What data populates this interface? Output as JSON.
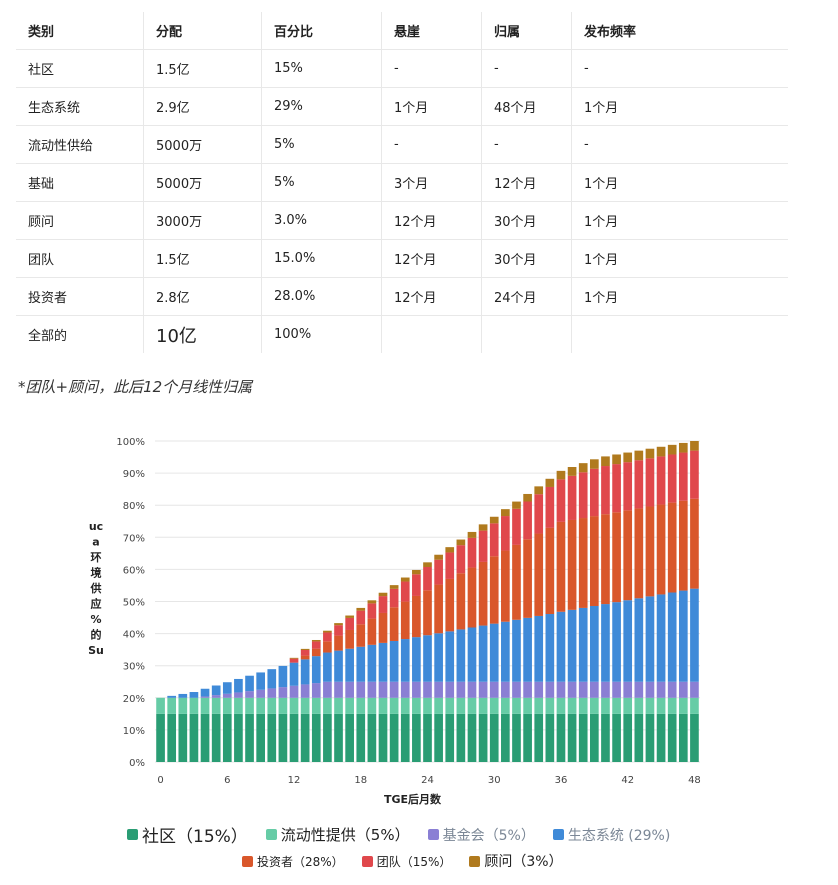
{
  "table": {
    "headers": [
      "类别",
      "分配",
      "百分比",
      "悬崖",
      "归属",
      "发布频率"
    ],
    "rows": [
      [
        "社区",
        "1.5亿",
        "15%",
        "-",
        "-",
        "-"
      ],
      [
        "生态系统",
        "2.9亿",
        "29%",
        "1个月",
        "48个月",
        "1个月"
      ],
      [
        "流动性供给",
        "5000万",
        "5%",
        "-",
        "-",
        "-"
      ],
      [
        "基础",
        "5000万",
        "5%",
        "3个月",
        "12个月",
        "1个月"
      ],
      [
        "顾问",
        "3000万",
        "3.0%",
        "12个月",
        "30个月",
        "1个月"
      ],
      [
        "团队",
        "1.5亿",
        "15.0%",
        "12个月",
        "30个月",
        "1个月"
      ],
      [
        "投资者",
        "2.8亿",
        "28.0%",
        "12个月",
        "24个月",
        "1个月"
      ],
      [
        "全部的",
        "10亿",
        "100%",
        "",
        "",
        ""
      ]
    ]
  },
  "note": "*团队+顾问，此后12个月线性归属",
  "chart_data": {
    "type": "bar",
    "stacked": true,
    "xlabel": "TGE后月数",
    "ylabel": "Su 的 % 应 供 境 环 a uc",
    "ylim": [
      0,
      100
    ],
    "x_ticks": [
      0,
      6,
      12,
      18,
      24,
      30,
      36,
      42,
      48
    ],
    "y_ticks": [
      "0%",
      "10%",
      "20%",
      "30%",
      "40%",
      "50%",
      "60%",
      "70%",
      "80%",
      "90%",
      "100%"
    ],
    "x": [
      0,
      1,
      2,
      3,
      4,
      5,
      6,
      7,
      8,
      9,
      10,
      11,
      12,
      13,
      14,
      15,
      16,
      17,
      18,
      19,
      20,
      21,
      22,
      23,
      24,
      25,
      26,
      27,
      28,
      29,
      30,
      31,
      32,
      33,
      34,
      35,
      36,
      37,
      38,
      39,
      40,
      41,
      42,
      43,
      44,
      45,
      46,
      47,
      48
    ],
    "grid": "horizontal",
    "legend_position": "bottom",
    "series": [
      {
        "name": "社区（15%）",
        "color": "#2a9d74",
        "values": [
          15,
          15,
          15,
          15,
          15,
          15,
          15,
          15,
          15,
          15,
          15,
          15,
          15,
          15,
          15,
          15,
          15,
          15,
          15,
          15,
          15,
          15,
          15,
          15,
          15,
          15,
          15,
          15,
          15,
          15,
          15,
          15,
          15,
          15,
          15,
          15,
          15,
          15,
          15,
          15,
          15,
          15,
          15,
          15,
          15,
          15,
          15,
          15,
          15
        ]
      },
      {
        "name": "流动性提供（5%）",
        "color": "#66cca6",
        "values": [
          5,
          5,
          5,
          5,
          5,
          5,
          5,
          5,
          5,
          5,
          5,
          5,
          5,
          5,
          5,
          5,
          5,
          5,
          5,
          5,
          5,
          5,
          5,
          5,
          5,
          5,
          5,
          5,
          5,
          5,
          5,
          5,
          5,
          5,
          5,
          5,
          5,
          5,
          5,
          5,
          5,
          5,
          5,
          5,
          5,
          5,
          5,
          5,
          5
        ]
      },
      {
        "name": "基金会（5%）",
        "color": "#8a7fd4",
        "values": [
          0,
          0,
          0,
          0,
          0.42,
          0.83,
          1.25,
          1.67,
          2.08,
          2.5,
          2.92,
          3.33,
          3.75,
          4.17,
          4.58,
          5,
          5,
          5,
          5,
          5,
          5,
          5,
          5,
          5,
          5,
          5,
          5,
          5,
          5,
          5,
          5,
          5,
          5,
          5,
          5,
          5,
          5,
          5,
          5,
          5,
          5,
          5,
          5,
          5,
          5,
          5,
          5,
          5,
          5
        ]
      },
      {
        "name": "生态系统 (29%)",
        "color": "#3f8ad8",
        "values": [
          0,
          0.6,
          1.2,
          1.8,
          2.4,
          3.0,
          3.6,
          4.2,
          4.8,
          5.4,
          6.0,
          6.6,
          7.2,
          7.8,
          8.4,
          9.1,
          9.7,
          10.3,
          10.9,
          11.5,
          12.1,
          12.7,
          13.3,
          13.9,
          14.5,
          15.1,
          15.7,
          16.3,
          16.9,
          17.5,
          18.1,
          18.7,
          19.3,
          19.9,
          20.5,
          21.1,
          21.8,
          22.4,
          23.0,
          23.6,
          24.2,
          24.8,
          25.4,
          26.0,
          26.6,
          27.2,
          27.8,
          28.4,
          29.0
        ]
      },
      {
        "name": "投资者（28%）",
        "color": "#d9572b",
        "values": [
          0,
          0,
          0,
          0,
          0,
          0,
          0,
          0,
          0,
          0,
          0,
          0,
          0,
          1.17,
          2.33,
          3.5,
          4.67,
          5.83,
          7.0,
          8.17,
          9.33,
          10.5,
          11.67,
          12.83,
          14.0,
          15.17,
          16.33,
          17.5,
          18.67,
          19.83,
          21.0,
          22.17,
          23.33,
          24.5,
          25.67,
          26.83,
          28,
          28,
          28,
          28,
          28,
          28,
          28,
          28,
          28,
          28,
          28,
          28,
          28
        ]
      },
      {
        "name": "团队（15%）",
        "color": "#e0484c",
        "values": [
          0,
          0,
          0,
          0,
          0,
          0,
          0,
          0,
          0,
          0,
          0,
          0,
          1.25,
          1.75,
          2.25,
          2.75,
          3.25,
          3.75,
          4.25,
          4.75,
          5.25,
          5.75,
          6.25,
          6.75,
          7.25,
          7.75,
          8.25,
          8.75,
          9.25,
          9.75,
          10.25,
          10.75,
          11.25,
          11.75,
          12.25,
          12.75,
          13.25,
          13.75,
          14.25,
          14.75,
          15,
          15,
          15,
          15,
          15,
          15,
          15,
          15,
          15
        ]
      },
      {
        "name": "顾问（3%）",
        "color": "#b07a1e",
        "values": [
          0,
          0,
          0,
          0,
          0,
          0,
          0,
          0,
          0,
          0,
          0,
          0,
          0.25,
          0.35,
          0.45,
          0.55,
          0.65,
          0.75,
          0.85,
          0.95,
          1.05,
          1.15,
          1.25,
          1.35,
          1.45,
          1.55,
          1.65,
          1.75,
          1.85,
          1.95,
          2.05,
          2.15,
          2.25,
          2.35,
          2.45,
          2.55,
          2.65,
          2.75,
          2.85,
          2.95,
          3,
          3,
          3,
          3,
          3,
          3,
          3,
          3,
          3
        ]
      }
    ]
  }
}
